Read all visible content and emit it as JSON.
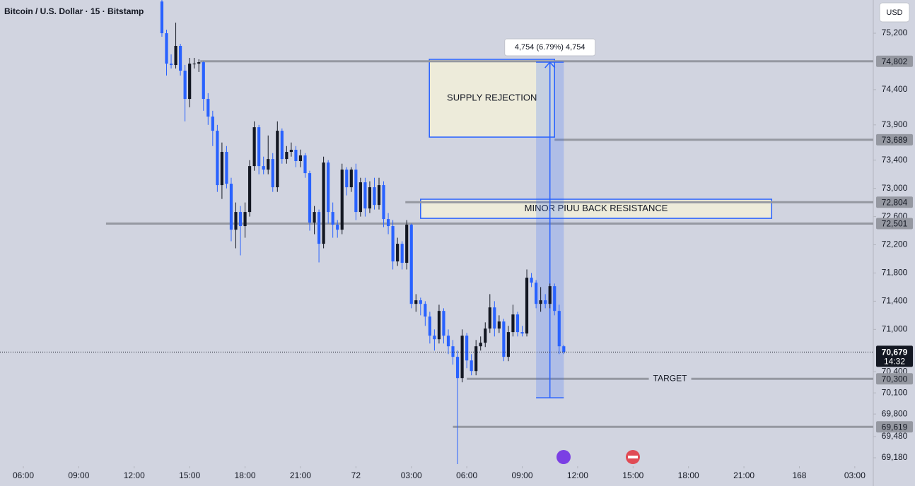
{
  "chart_data": {
    "type": "candlestick",
    "title": "Bitcoin / U.S. Dollar · 15 · Bitstamp",
    "currency": "USD",
    "up_color": "#131722",
    "down_color": "#2962ff",
    "xlim": [
      -5.05,
      184
    ],
    "ylim": [
      69060,
      75671
    ],
    "xticks": [
      {
        "value": 0,
        "label": "06:00"
      },
      {
        "value": 12,
        "label": "09:00"
      },
      {
        "value": 24,
        "label": "12:00"
      },
      {
        "value": 36,
        "label": "15:00"
      },
      {
        "value": 48,
        "label": "18:00"
      },
      {
        "value": 60,
        "label": "21:00"
      },
      72,
      {
        "value": 84,
        "label": "03:00"
      },
      {
        "value": 96,
        "label": "06:00"
      },
      {
        "value": 108,
        "label": "09:00"
      },
      {
        "value": 120,
        "label": "12:00"
      },
      {
        "value": 132,
        "label": "15:00"
      },
      {
        "value": 144,
        "label": "18:00"
      },
      {
        "value": 156,
        "label": "21:00"
      },
      168,
      {
        "value": 180,
        "label": "03:00"
      }
    ],
    "xtick_labels_override": null,
    "yticks": [
      {
        "value": 75200,
        "label": "75,200"
      },
      {
        "value": 74400,
        "label": "74,400"
      },
      {
        "value": 73900,
        "label": "73,900"
      },
      {
        "value": 73400,
        "label": "73,400"
      },
      {
        "value": 73000,
        "label": "73,000"
      },
      {
        "value": 72600,
        "label": "72,600"
      },
      {
        "value": 72200,
        "label": "72,200"
      },
      {
        "value": 71800,
        "label": "71,800"
      },
      {
        "value": 71400,
        "label": "71,400"
      },
      {
        "value": 71000,
        "label": "71,000"
      },
      {
        "value": 70400,
        "label": "70,400"
      },
      {
        "value": 70100,
        "label": "70,100"
      },
      {
        "value": 69800,
        "label": "69,800"
      },
      {
        "value": 69480,
        "label": "69,480"
      },
      {
        "value": 69180,
        "label": "69,180"
      }
    ],
    "x": [
      30,
      31,
      32,
      33,
      34,
      35,
      36,
      37,
      38,
      39,
      40,
      41,
      42,
      43,
      44,
      45,
      46,
      47,
      48,
      49,
      50,
      51,
      52,
      53,
      54,
      55,
      56,
      57,
      58,
      59,
      60,
      61,
      62,
      63,
      64,
      65,
      66,
      67,
      68,
      69,
      70,
      71,
      72,
      73,
      74,
      75,
      76,
      77,
      78,
      79,
      80,
      81,
      82,
      83,
      84,
      85,
      86,
      87,
      88,
      89,
      90,
      91,
      92,
      93,
      94,
      95,
      96,
      97,
      98,
      99,
      100,
      101,
      102,
      103,
      104,
      105,
      106,
      107,
      108,
      109,
      110,
      111,
      112,
      113,
      114,
      115,
      116,
      117
    ],
    "candles": [
      [
        75650,
        75700,
        75150,
        75200
      ],
      [
        75200,
        75250,
        74600,
        74769
      ],
      [
        74769,
        74900,
        74700,
        74749
      ],
      [
        74749,
        75350,
        74700,
        75020
      ],
      [
        75020,
        75050,
        74600,
        74669
      ],
      [
        74669,
        74750,
        73950,
        74268
      ],
      [
        74268,
        74850,
        74150,
        74769
      ],
      [
        74769,
        74850,
        74700,
        74769
      ],
      [
        74769,
        74830,
        74650,
        74789
      ],
      [
        74789,
        74802,
        74100,
        74268
      ],
      [
        74268,
        74350,
        73900,
        74018
      ],
      [
        74018,
        74100,
        73600,
        73817
      ],
      [
        73817,
        73900,
        72950,
        73046
      ],
      [
        73046,
        73650,
        72850,
        73517
      ],
      [
        73517,
        73600,
        73000,
        73066
      ],
      [
        73066,
        73150,
        72250,
        72414
      ],
      [
        72414,
        72800,
        72150,
        72665
      ],
      [
        72665,
        72750,
        72050,
        72465
      ],
      [
        72465,
        72800,
        72300,
        72665
      ],
      [
        72665,
        73400,
        72600,
        73316
      ],
      [
        73316,
        73950,
        73250,
        73867
      ],
      [
        73867,
        73900,
        73200,
        73316
      ],
      [
        73316,
        73450,
        73200,
        73266
      ],
      [
        73266,
        73750,
        73200,
        73416
      ],
      [
        73416,
        73500,
        72950,
        73016
      ],
      [
        73016,
        73950,
        72950,
        73817
      ],
      [
        73817,
        73850,
        73350,
        73416
      ],
      [
        73416,
        73600,
        73350,
        73517
      ],
      [
        73517,
        73650,
        73450,
        73547
      ],
      [
        73547,
        73600,
        73300,
        73387
      ],
      [
        73387,
        73550,
        73300,
        73467
      ],
      [
        73467,
        73500,
        73150,
        73216
      ],
      [
        73216,
        73250,
        72400,
        72515
      ],
      [
        72515,
        72750,
        72350,
        72665
      ],
      [
        72665,
        72700,
        71950,
        72214
      ],
      [
        72214,
        73450,
        72150,
        73366
      ],
      [
        73366,
        73400,
        72500,
        72665
      ],
      [
        72665,
        72800,
        72300,
        72485
      ],
      [
        72485,
        72550,
        72300,
        72414
      ],
      [
        72414,
        73350,
        72350,
        73266
      ],
      [
        73266,
        73300,
        72900,
        73016
      ],
      [
        73016,
        73300,
        72950,
        73266
      ],
      [
        73266,
        73350,
        72550,
        72665
      ],
      [
        72665,
        73150,
        72600,
        73086
      ],
      [
        73086,
        73150,
        72600,
        72715
      ],
      [
        72715,
        73100,
        72650,
        73016
      ],
      [
        73016,
        73150,
        72700,
        72765
      ],
      [
        72765,
        73150,
        72700,
        73046
      ],
      [
        73046,
        73100,
        72450,
        72565
      ],
      [
        72565,
        72650,
        72350,
        72465
      ],
      [
        72465,
        72550,
        71850,
        71964
      ],
      [
        71964,
        72300,
        71900,
        72214
      ],
      [
        72214,
        72250,
        71850,
        71944
      ],
      [
        71944,
        72550,
        71850,
        72485
      ],
      [
        72485,
        72500,
        71300,
        71362
      ],
      [
        71362,
        71500,
        71250,
        71413
      ],
      [
        71413,
        71450,
        71200,
        71362
      ],
      [
        71362,
        71400,
        71050,
        71182
      ],
      [
        71182,
        71250,
        70800,
        70911
      ],
      [
        70911,
        71000,
        70700,
        70861
      ],
      [
        70861,
        71350,
        70800,
        71262
      ],
      [
        71262,
        71300,
        70800,
        70911
      ],
      [
        70911,
        71000,
        70650,
        70761
      ],
      [
        70761,
        70850,
        70500,
        70611
      ],
      [
        70611,
        70700,
        69090,
        70310
      ],
      [
        70310,
        71000,
        70250,
        70911
      ],
      [
        70911,
        70950,
        70450,
        70560
      ],
      [
        70560,
        70650,
        70350,
        70410
      ],
      [
        70410,
        70850,
        70350,
        70761
      ],
      [
        70761,
        70900,
        70700,
        70811
      ],
      [
        70811,
        71100,
        70750,
        71012
      ],
      [
        71012,
        71500,
        70950,
        71312
      ],
      [
        71312,
        71400,
        70900,
        71012
      ],
      [
        71012,
        71200,
        70950,
        71112
      ],
      [
        71112,
        71150,
        70550,
        70611
      ],
      [
        70611,
        71050,
        70550,
        70962
      ],
      [
        70962,
        71350,
        70900,
        71212
      ],
      [
        71212,
        71250,
        70900,
        70962
      ],
      [
        70962,
        71050,
        70900,
        70942
      ],
      [
        70942,
        71850,
        70900,
        71733
      ],
      [
        71733,
        71800,
        71600,
        71663
      ],
      [
        71663,
        71700,
        71300,
        71362
      ],
      [
        71362,
        71600,
        71250,
        71413
      ],
      [
        71413,
        71500,
        71300,
        71362
      ],
      [
        71362,
        71650,
        71300,
        71613
      ],
      [
        71613,
        71650,
        71200,
        71262
      ],
      [
        71262,
        71350,
        70650,
        70761
      ],
      [
        70761,
        70780,
        70650,
        70679
      ]
    ],
    "levels": [
      {
        "value": 74802,
        "label": "74,802",
        "from": 38.3
      },
      {
        "value": 73689,
        "label": "73,689",
        "from": 115
      },
      {
        "value": 72804,
        "label": "72,804",
        "from": 82.7
      },
      {
        "value": 72501,
        "label": "72,501",
        "from": 17.9
      },
      {
        "value": 70300,
        "label": "70,300",
        "from": 96,
        "text": "TARGET"
      },
      {
        "value": 69619,
        "label": "69,619",
        "from": 93
      }
    ],
    "zones": [
      {
        "text": "SUPPLY REJECTION",
        "from": 87.9,
        "to": 115,
        "top": 74829,
        "bottom": 73727
      },
      {
        "text": "MINOR PIUU BACK RESISTANCE",
        "from": 86,
        "to": 162,
        "top": 72846,
        "bottom": 72575
      }
    ],
    "measure": {
      "from": 111,
      "to": 117,
      "top": 74790,
      "bottom": 70030,
      "label": "4,754 (6.79%) 4,754"
    },
    "last_price": {
      "value": 70679,
      "label": "70,679"
    },
    "countdown": "14:32"
  }
}
